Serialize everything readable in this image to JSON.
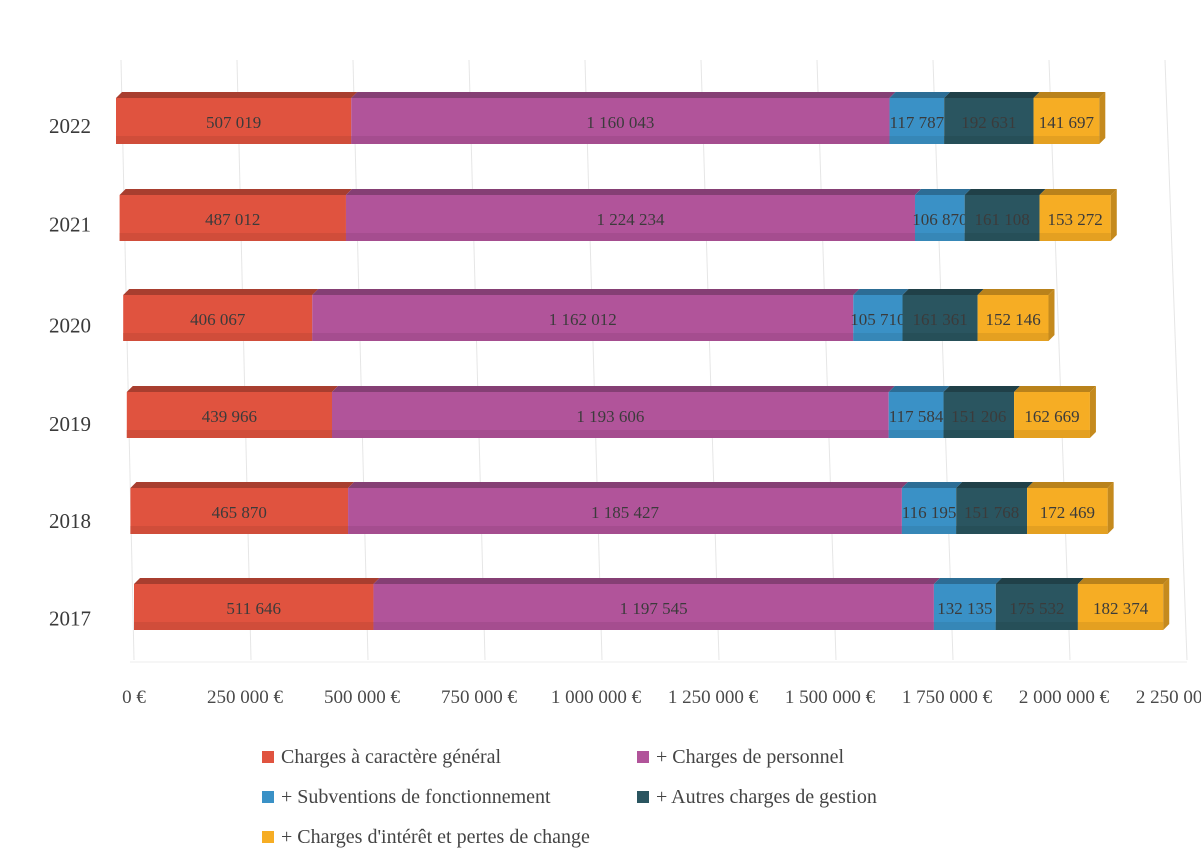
{
  "chart_data": {
    "type": "bar",
    "orientation": "horizontal",
    "stacked": true,
    "categories": [
      "2022",
      "2021",
      "2020",
      "2019",
      "2018",
      "2017"
    ],
    "series": [
      {
        "name": "Charges à caractère général",
        "color": "#e0533f",
        "values": [
          507019,
          487012,
          406067,
          439966,
          465870,
          511646
        ],
        "labels": [
          "507 019",
          "487 012",
          "406 067",
          "439 966",
          "465 870",
          "511 646"
        ]
      },
      {
        "name": "+ Charges de personnel",
        "color": "#b1549a",
        "values": [
          1160043,
          1224234,
          1162012,
          1193606,
          1185427,
          1197545
        ],
        "labels": [
          "1 160 043",
          "1 224 234",
          "1 162 012",
          "1 193 606",
          "1 185 427",
          "1 197 545"
        ]
      },
      {
        "name": "+ Subventions de fonctionnement",
        "color": "#3a91c6",
        "values": [
          117787,
          106870,
          105710,
          117584,
          116195,
          132135
        ],
        "labels": [
          "117 787",
          "106 870",
          "105 710",
          "117 584",
          "116 195",
          "132 135"
        ]
      },
      {
        "name": "+ Autres charges de gestion",
        "color": "#2a5560",
        "values": [
          192631,
          161108,
          161361,
          151206,
          151768,
          175532
        ],
        "labels": [
          "192 631",
          "161 108",
          "161 361",
          "151 206",
          "151 768",
          "175 532"
        ]
      },
      {
        "name": "+ Charges d'intérêt et pertes de change",
        "color": "#f6ad24",
        "values": [
          141697,
          153272,
          152146,
          162669,
          172469,
          182374
        ],
        "labels": [
          "141 697",
          "153 272",
          "152 146",
          "162 669",
          "172 469",
          "182 374"
        ]
      }
    ],
    "x_ticks": [
      "0 €",
      "250 000 €",
      "500 000 €",
      "750 000 €",
      "1 000 000 €",
      "1 250 000 €",
      "1 500 000 €",
      "1 750 000 €",
      "2 000 000 €",
      "2 250 000 €"
    ],
    "xlim": [
      0,
      2250000
    ],
    "grid": true,
    "legend_position": "bottom"
  }
}
